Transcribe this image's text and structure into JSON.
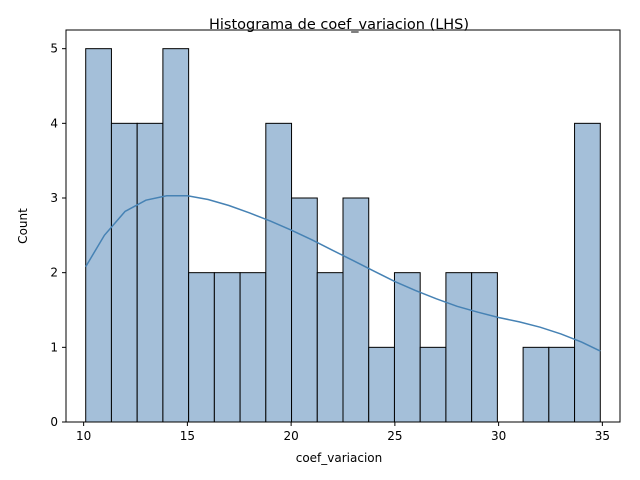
{
  "chart_data": {
    "type": "bar",
    "title": "Histograma de coef_variacion (LHS)",
    "xlabel": "coef_variacion",
    "ylabel": "Count",
    "xlim": [
      9.15,
      35.85
    ],
    "ylim": [
      0,
      5.25
    ],
    "xticks": [
      10,
      15,
      20,
      25,
      30,
      35
    ],
    "yticks": [
      0,
      1,
      2,
      3,
      4,
      5
    ],
    "bin_edges": [
      10.1,
      11.34,
      12.58,
      13.82,
      15.06,
      16.3,
      17.54,
      18.78,
      20.02,
      21.26,
      22.5,
      23.74,
      24.98,
      26.22,
      27.46,
      28.7,
      29.94,
      31.18,
      32.42,
      33.66,
      34.9
    ],
    "counts": [
      5,
      4,
      4,
      5,
      2,
      2,
      2,
      4,
      3,
      2,
      3,
      1,
      2,
      1,
      2,
      2,
      0,
      1,
      1,
      4
    ],
    "kde": {
      "x": [
        10.1,
        11.0,
        12.0,
        13.0,
        14.0,
        15.0,
        16.0,
        17.0,
        18.0,
        19.0,
        20.0,
        21.0,
        22.0,
        23.0,
        24.0,
        25.0,
        26.0,
        27.0,
        28.0,
        29.0,
        30.0,
        31.0,
        32.0,
        33.0,
        34.0,
        34.9
      ],
      "y": [
        2.08,
        2.5,
        2.82,
        2.97,
        3.03,
        3.03,
        2.98,
        2.9,
        2.8,
        2.69,
        2.57,
        2.44,
        2.3,
        2.16,
        2.02,
        1.88,
        1.76,
        1.65,
        1.55,
        1.47,
        1.4,
        1.34,
        1.27,
        1.18,
        1.07,
        0.95
      ]
    },
    "bar_color": "#a4bfd9",
    "bar_edge_color": "#000000",
    "kde_color": "#4682b4",
    "grid": false,
    "legend": "none"
  }
}
